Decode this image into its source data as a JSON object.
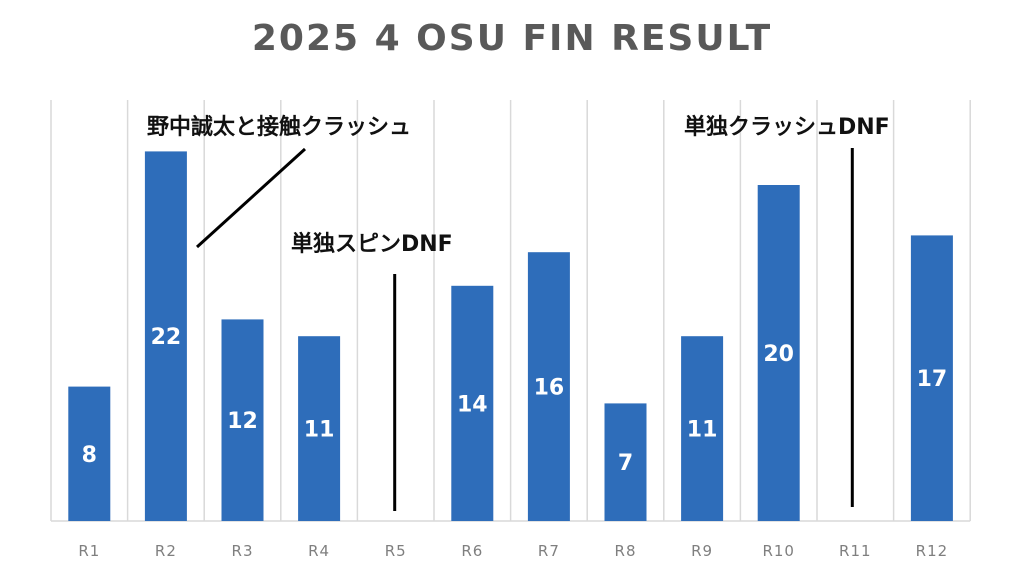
{
  "chart_data": {
    "type": "bar",
    "title": "2025 4 OSU FIN RESULT",
    "categories": [
      "R1",
      "R2",
      "R3",
      "R4",
      "R5",
      "R6",
      "R7",
      "R8",
      "R9",
      "R10",
      "R11",
      "R12"
    ],
    "values": [
      8,
      22,
      12,
      11,
      null,
      14,
      16,
      7,
      11,
      20,
      null,
      17
    ],
    "data_labels": [
      "8",
      "22",
      "12",
      "11",
      "",
      "14",
      "16",
      "7",
      "11",
      "20",
      "",
      "17"
    ],
    "bar_color": "#2e6dba",
    "grid": "vertical",
    "annotations": [
      {
        "text": "野中誠太と接触クラッシュ",
        "category": "R2"
      },
      {
        "text": "単独スピンDNF",
        "category": "R5"
      },
      {
        "text": "単独クラッシュDNF",
        "category": "R11"
      }
    ]
  }
}
